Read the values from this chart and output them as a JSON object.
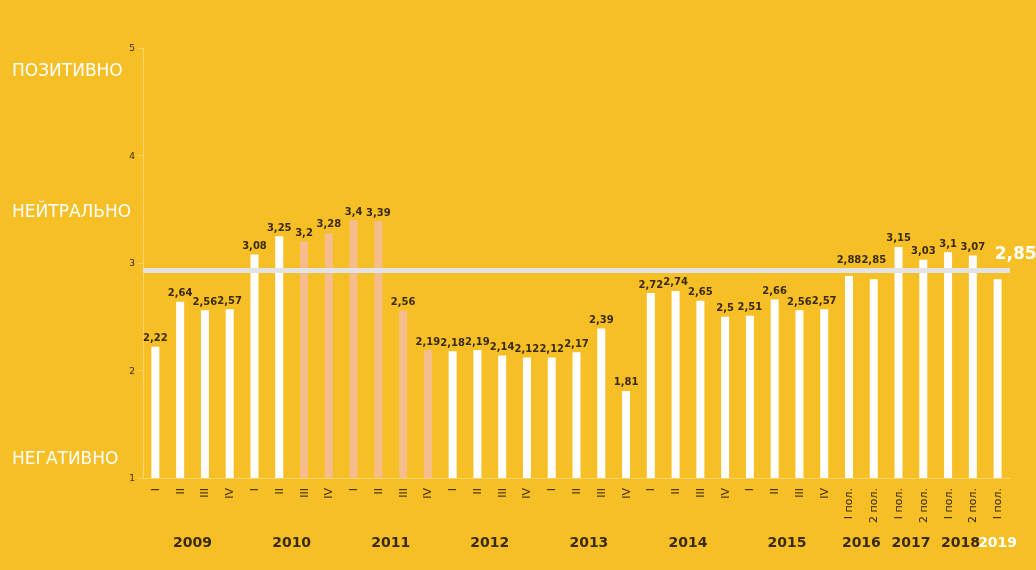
{
  "chart_data": {
    "type": "bar",
    "categories": [
      "I",
      "II",
      "III",
      "IV",
      "I",
      "II",
      "III",
      "IV",
      "I",
      "II",
      "III",
      "IV",
      "I",
      "II",
      "III",
      "IV",
      "I",
      "II",
      "III",
      "IV",
      "I",
      "II",
      "III",
      "IV",
      "I",
      "II",
      "III",
      "IV",
      "I пол.",
      "2 пол.",
      "I пол.",
      "2 пол.",
      "I пол.",
      "2 пол.",
      "I пол."
    ],
    "values": [
      2.22,
      2.64,
      2.56,
      2.57,
      3.08,
      3.25,
      3.2,
      3.28,
      3.4,
      3.39,
      2.56,
      2.19,
      2.18,
      2.19,
      2.14,
      2.12,
      2.12,
      2.17,
      2.39,
      1.81,
      2.72,
      2.74,
      2.65,
      2.5,
      2.51,
      2.66,
      2.56,
      2.57,
      2.88,
      2.85,
      3.15,
      3.03,
      3.1,
      3.07,
      2.85
    ],
    "colors": [
      "#ffffff",
      "#ffffff",
      "#ffffff",
      "#ffffff",
      "#ffffff",
      "#ffffff",
      "#f5bd8c",
      "#f5bd8c",
      "#f5bd8c",
      "#f5bd8c",
      "#f5bd8c",
      "#f5bd8c",
      "#ffffff",
      "#ffffff",
      "#ffffff",
      "#ffffff",
      "#ffffff",
      "#ffffff",
      "#ffffff",
      "#ffffff",
      "#ffffff",
      "#ffffff",
      "#ffffff",
      "#ffffff",
      "#ffffff",
      "#ffffff",
      "#ffffff",
      "#ffffff",
      "#ffffff",
      "#ffffff",
      "#ffffff",
      "#ffffff",
      "#ffffff",
      "#ffffff",
      "#ffffff"
    ],
    "value_labels": [
      "2,22",
      "2,64",
      "2,56",
      "2,57",
      "3,08",
      "3,25",
      "3,2",
      "3,28",
      "3,4",
      "3,39",
      "2,56",
      "2,19",
      "2,18",
      "2,19",
      "2,14",
      "2,12",
      "2,12",
      "2,17",
      "2,39",
      "1,81",
      "2,72",
      "2,74",
      "2,65",
      "2,5",
      "2,51",
      "2,66",
      "2,56",
      "2,57",
      "2,88",
      "2,85",
      "3,15",
      "3,03",
      "3,1",
      "3,07",
      "2,85"
    ],
    "ylim": [
      1,
      5
    ],
    "yticks": [
      1,
      2,
      3,
      4,
      5
    ],
    "grid": false,
    "ref_lines": [
      {
        "axis": "y",
        "value": 2.93,
        "color": "#e3e3e3"
      }
    ],
    "annotations": [
      "ПОЗИТИВНО",
      "НЕЙТРАЛЬНО",
      "НЕГАТИВНО",
      "2009",
      "2010",
      "2011",
      "2012",
      "2013",
      "2014",
      "2015",
      "2016",
      "2017",
      "2018",
      "2019"
    ]
  }
}
